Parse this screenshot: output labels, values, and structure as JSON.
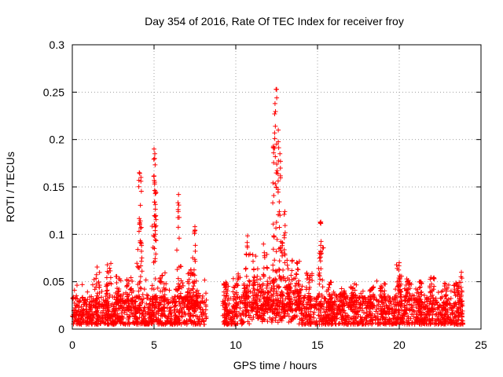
{
  "chart_data": {
    "type": "scatter",
    "title": "Day 354 of 2016, Rate Of TEC Index for receiver froy",
    "xlabel": "GPS time / hours",
    "ylabel": "ROTI / TECUs",
    "xlim": [
      0,
      25
    ],
    "ylim": [
      0,
      0.3
    ],
    "xticks": [
      "0",
      "5",
      "10",
      "15",
      "20",
      "25"
    ],
    "yticks": [
      "0",
      "0.05",
      "0.1",
      "0.15",
      "0.2",
      "0.25",
      "0.3"
    ],
    "grid": true,
    "marker": "+",
    "color": "#ff0000",
    "data_gap_hours": [
      8.2,
      9.2
    ],
    "x_extent": [
      0.0,
      23.9
    ],
    "spikes": [
      {
        "x": 4.1,
        "y": 0.165
      },
      {
        "x": 4.2,
        "y": 0.16
      },
      {
        "x": 5.0,
        "y": 0.19
      },
      {
        "x": 5.05,
        "y": 0.185
      },
      {
        "x": 5.1,
        "y": 0.145
      },
      {
        "x": 6.5,
        "y": 0.142
      },
      {
        "x": 7.5,
        "y": 0.108
      },
      {
        "x": 12.3,
        "y": 0.193
      },
      {
        "x": 12.4,
        "y": 0.238
      },
      {
        "x": 12.5,
        "y": 0.253
      },
      {
        "x": 12.6,
        "y": 0.21
      },
      {
        "x": 12.7,
        "y": 0.185
      },
      {
        "x": 13.0,
        "y": 0.124
      },
      {
        "x": 15.2,
        "y": 0.113
      },
      {
        "x": 20.0,
        "y": 0.07
      },
      {
        "x": 23.8,
        "y": 0.06
      }
    ]
  }
}
